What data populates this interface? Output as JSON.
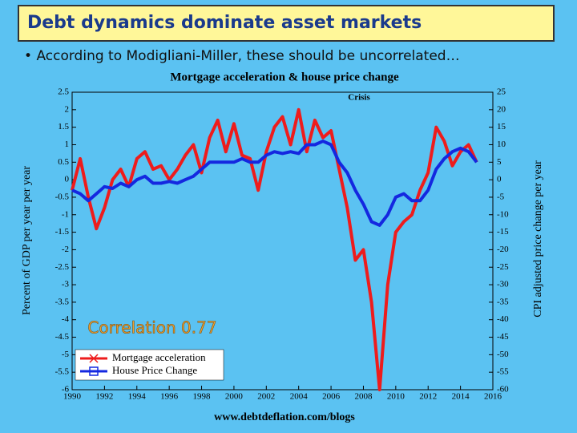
{
  "slide": {
    "title": "Debt dynamics dominate asset markets",
    "bullet": "According to Modigliani-Miller, these should be uncorrelated…"
  },
  "chart_data": {
    "type": "line",
    "title": "Mortgage acceleration & house price change",
    "annotations": [
      "Crisis",
      "Correlation 0.77",
      "www.debtdeflation.com/blogs"
    ],
    "y_label": "Percent of GDP per year per year",
    "y2_label": "CPI adjusted price change per year",
    "x": [
      1990,
      1990.5,
      1991,
      1991.5,
      1992,
      1992.5,
      1993,
      1993.5,
      1994,
      1994.5,
      1995,
      1995.5,
      1996,
      1996.5,
      1997,
      1997.5,
      1998,
      1998.5,
      1999,
      1999.5,
      2000,
      2000.5,
      2001,
      2001.5,
      2002,
      2002.5,
      2003,
      2003.5,
      2004,
      2004.5,
      2005,
      2005.5,
      2006,
      2006.5,
      2007,
      2007.5,
      2008,
      2008.5,
      2009,
      2009.5,
      2010,
      2010.5,
      2011,
      2011.5,
      2012,
      2012.5,
      2013,
      2013.5,
      2014,
      2014.5,
      2015
    ],
    "series": [
      {
        "name": "Mortgage acceleration",
        "color": "#ee1c1c",
        "values": [
          -0.3,
          0.6,
          -0.5,
          -1.4,
          -0.8,
          0,
          0.3,
          -0.2,
          0.6,
          0.8,
          0.3,
          0.4,
          0,
          0.3,
          0.7,
          1.0,
          0.2,
          1.2,
          1.7,
          0.8,
          1.6,
          0.7,
          0.6,
          -0.3,
          0.8,
          1.5,
          1.8,
          1.0,
          2.0,
          0.8,
          1.7,
          1.2,
          1.4,
          0.3,
          -0.8,
          -2.3,
          -2.0,
          -3.5,
          -6.0,
          -3.0,
          -1.5,
          -1.2,
          -1.0,
          -0.3,
          0.2,
          1.5,
          1.1,
          0.4,
          0.8,
          1.0,
          0.5
        ]
      },
      {
        "name": "House Price Change",
        "color": "#1428e0",
        "axis": "y2",
        "values": [
          -3,
          -4,
          -6,
          -4,
          -2,
          -2.5,
          -1,
          -2,
          0,
          1,
          -1,
          -1,
          -0.5,
          -1,
          0,
          1,
          3,
          5,
          5,
          5,
          5,
          6,
          5,
          5,
          7,
          8,
          7.5,
          8,
          7.5,
          10,
          10,
          11,
          10,
          5,
          2,
          -3,
          -7,
          -12,
          -13,
          -10,
          -5,
          -4,
          -6,
          -6,
          -3,
          3,
          6,
          8,
          9,
          8,
          5
        ]
      }
    ],
    "xlim": [
      1990,
      2016
    ],
    "xticks": [
      1990,
      1992,
      1994,
      1996,
      1998,
      2000,
      2002,
      2004,
      2006,
      2008,
      2010,
      2012,
      2014,
      2016
    ],
    "ylim": [
      -6,
      2.5
    ],
    "yticks": [
      -6,
      -5.5,
      -5,
      -4.5,
      -4,
      -3.5,
      -3,
      -2.5,
      -2,
      -1.5,
      -1,
      -0.5,
      0,
      0.5,
      1,
      1.5,
      2,
      2.5
    ],
    "y2lim": [
      -60,
      25
    ],
    "y2ticks": [
      -60,
      -55,
      -50,
      -45,
      -40,
      -35,
      -30,
      -25,
      -20,
      -15,
      -10,
      -5,
      0,
      5,
      10,
      15,
      20,
      25
    ],
    "legend": "bottom-left"
  }
}
